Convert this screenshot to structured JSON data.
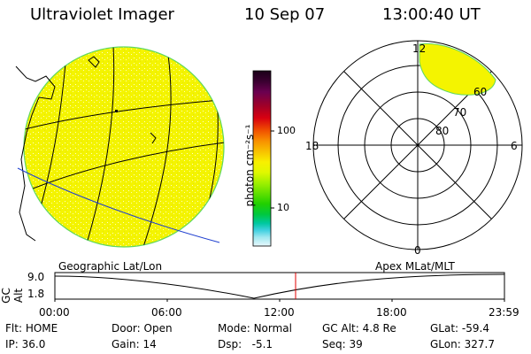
{
  "header": {
    "instrument": "Ultraviolet Imager",
    "date": "10 Sep 07",
    "time": "13:00:40 UT"
  },
  "colorbar": {
    "unit_label": "photon cm⁻²s⁻¹",
    "ticks": [
      "100",
      "10"
    ],
    "scale": "log",
    "colors_top_to_bottom": [
      "#1a0018",
      "#3a0030",
      "#6a0050",
      "#a00028",
      "#d80010",
      "#f05000",
      "#f89000",
      "#f8c000",
      "#f8f000",
      "#e0f800",
      "#a0f000",
      "#60e000",
      "#20d000",
      "#00c840",
      "#00c8a0",
      "#40d0e0",
      "#a0e8f0",
      "#e8f8fc"
    ]
  },
  "left_map": {
    "caption": "Geographic Lat/Lon",
    "disk_color": "#f4f400",
    "limb_color": "#60d860"
  },
  "right_plot": {
    "caption": "Apex MLat/MLT",
    "mlt_labels": {
      "top": "12",
      "left": "18",
      "right": "6",
      "bottom": "0"
    },
    "lat_labels": [
      "60",
      "70",
      "80"
    ],
    "oval_color": "#f4f400"
  },
  "altitude_strip": {
    "ylabel": "GC Alt",
    "y_top": "9.0",
    "y_bottom": "1.8",
    "x_ticks": [
      "00:00",
      "06:00",
      "12:00",
      "18:00",
      "23:59"
    ],
    "marker_color": "#e00000"
  },
  "status": {
    "row1": [
      {
        "label": "Flt:",
        "value": "HOME"
      },
      {
        "label": "Door:",
        "value": "Open"
      },
      {
        "label": "Mode:",
        "value": "Normal"
      },
      {
        "label": "GC Alt:",
        "value": "4.8 Re"
      },
      {
        "label": "GLat:",
        "value": "-59.4"
      }
    ],
    "row2": [
      {
        "label": "IP:",
        "value": "36.0"
      },
      {
        "label": "Gain:",
        "value": "14"
      },
      {
        "label": "Dsp:",
        "value": "-5.1"
      },
      {
        "label": "Seq:",
        "value": "39"
      },
      {
        "label": "GLon:",
        "value": "327.7"
      }
    ]
  }
}
